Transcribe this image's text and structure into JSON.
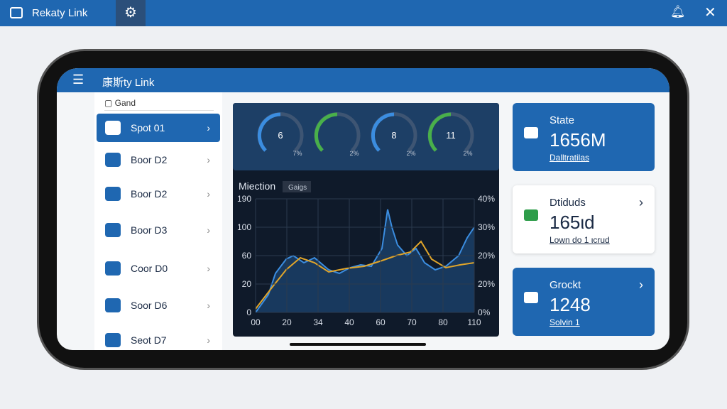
{
  "window": {
    "title": "Rekaty Link"
  },
  "app": {
    "title": "康斯ty Link",
    "search": "Gand",
    "menu": [
      "Spot 01",
      "Boor D2",
      "Boor D2",
      "Boor D3",
      "Coor D0",
      "Soor D6",
      "Seot D7"
    ]
  },
  "gauges": [
    {
      "value": "6",
      "unit": "7%"
    },
    {
      "value": "",
      "unit": "2%"
    },
    {
      "value": "8",
      "unit": "2%"
    },
    {
      "value": "11",
      "unit": "2%"
    }
  ],
  "panel": {
    "title": "Miection",
    "tag": "Gaigs",
    "y_labels": [
      "190",
      "100",
      "60",
      "20",
      "0"
    ],
    "y2_labels": [
      "40%",
      "30%",
      "20%",
      "20%",
      "0%"
    ],
    "x_labels": [
      "00",
      "20",
      "34",
      "40",
      "60",
      "70",
      "80",
      "110"
    ]
  },
  "cards": [
    {
      "title": "State",
      "value": "1656M",
      "subtitle": "Dalltratilas"
    },
    {
      "title": "Dtiduds",
      "value": "165ιd",
      "subtitle": "Lown do 1 ιcrud"
    },
    {
      "title": "Grockt",
      "value": "1248",
      "subtitle": "Solvin 1"
    }
  ]
}
